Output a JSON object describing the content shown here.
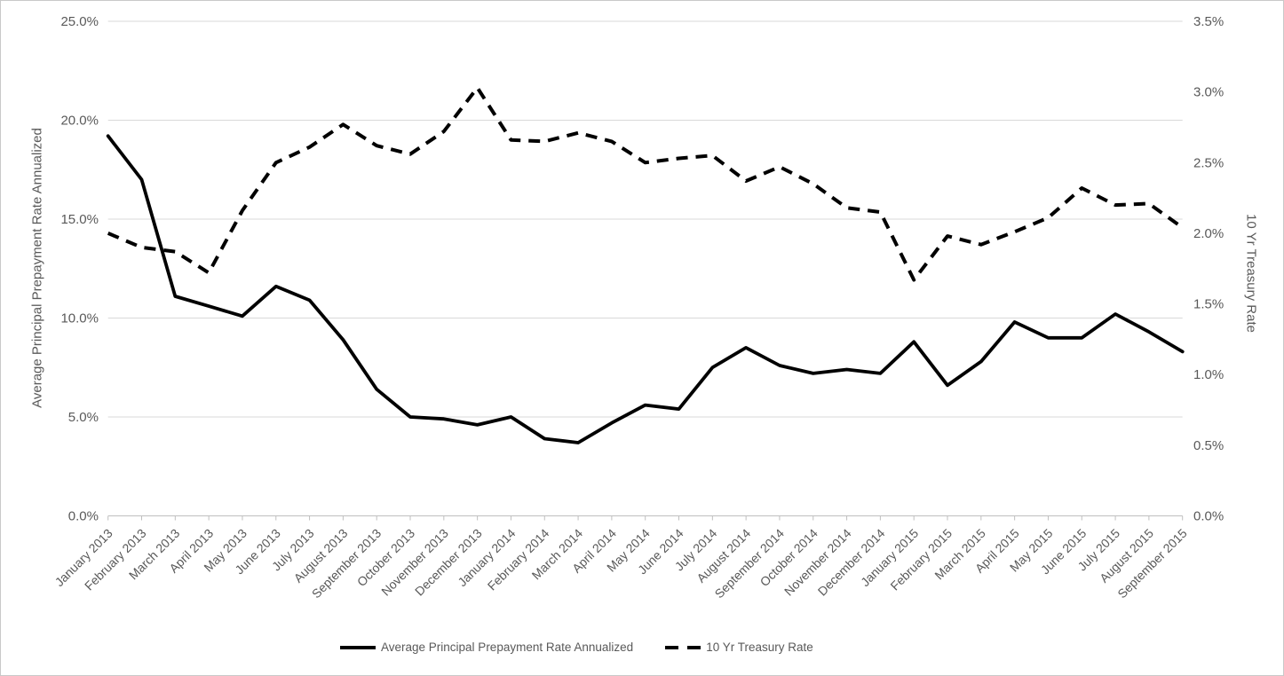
{
  "chart_data": {
    "type": "line",
    "title": "",
    "categories": [
      "January 2013",
      "February 2013",
      "March 2013",
      "April 2013",
      "May 2013",
      "June 2013",
      "July 2013",
      "August 2013",
      "September 2013",
      "October 2013",
      "November 2013",
      "December 2013",
      "January 2014",
      "February 2014",
      "March 2014",
      "April 2014",
      "May 2014",
      "June 2014",
      "July 2014",
      "August 2014",
      "September 2014",
      "October 2014",
      "November 2014",
      "December 2014",
      "January 2015",
      "February 2015",
      "March 2015",
      "April 2015",
      "May 2015",
      "June 2015",
      "July 2015",
      "August 2015",
      "September 2015"
    ],
    "series": [
      {
        "name": "Average Principal Prepayment Rate Annualized",
        "axis": "left",
        "style": "solid",
        "color": "#000000",
        "values": [
          19.2,
          17.0,
          11.1,
          10.6,
          10.1,
          11.6,
          10.9,
          8.9,
          6.4,
          5.0,
          4.9,
          4.6,
          5.0,
          3.9,
          3.7,
          4.7,
          5.6,
          5.4,
          7.5,
          8.5,
          7.6,
          7.2,
          7.4,
          7.2,
          8.8,
          6.6,
          7.8,
          9.8,
          9.0,
          9.0,
          10.2,
          9.3,
          8.3
        ]
      },
      {
        "name": "10 Yr Treasury Rate",
        "axis": "right",
        "style": "dashed",
        "color": "#000000",
        "values": [
          2.0,
          1.9,
          1.87,
          1.72,
          2.16,
          2.5,
          2.61,
          2.77,
          2.62,
          2.56,
          2.72,
          3.03,
          2.66,
          2.65,
          2.71,
          2.65,
          2.5,
          2.53,
          2.55,
          2.37,
          2.47,
          2.35,
          2.18,
          2.15,
          1.67,
          1.98,
          1.92,
          2.01,
          2.11,
          2.32,
          2.2,
          2.21,
          2.04
        ]
      }
    ],
    "ylabel_left": "Average Principal Prepayment Rate Annualized",
    "ylabel_right": "10 Yr Treasury Rate",
    "xlabel": "",
    "y_left": {
      "min": 0,
      "max": 25,
      "step": 5,
      "tick_labels": [
        "0.0%",
        "5.0%",
        "10.0%",
        "15.0%",
        "20.0%",
        "25.0%"
      ]
    },
    "y_right": {
      "min": 0,
      "max": 3.5,
      "step": 0.5,
      "tick_labels": [
        "0.0%",
        "0.5%",
        "1.0%",
        "1.5%",
        "2.0%",
        "2.5%",
        "3.0%",
        "3.5%"
      ]
    },
    "grid": "horizontal",
    "legend_position": "bottom",
    "colors": {
      "line": "#000000",
      "gridline": "#d9d9d9",
      "axis_line": "#bfbfbf",
      "tick_label": "#595959",
      "axis_title": "#595959",
      "background": "#ffffff"
    }
  }
}
